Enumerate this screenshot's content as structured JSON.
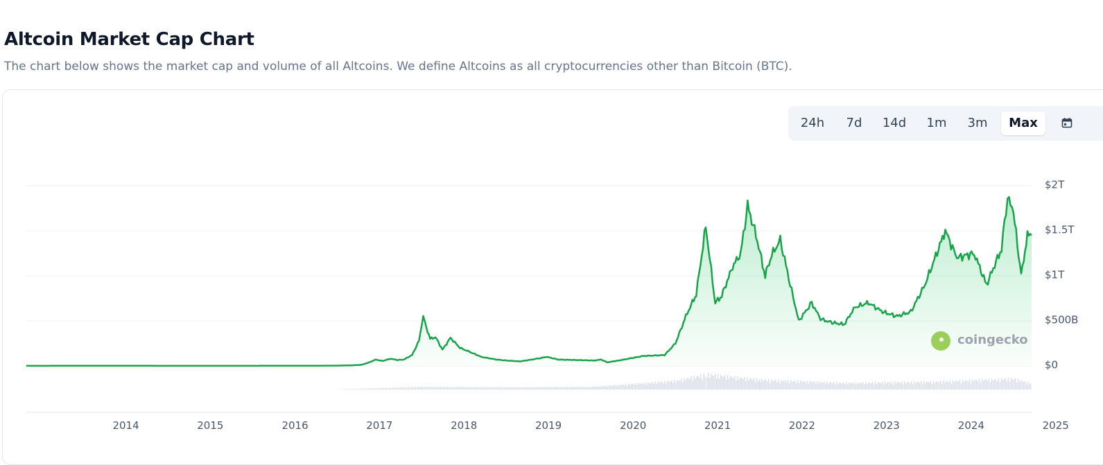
{
  "header": {
    "title": "Altcoin Market Cap Chart",
    "subtitle": "The chart below shows the market cap and volume of all Altcoins. We define Altcoins as all cryptocurrencies other than Bitcoin (BTC)."
  },
  "range_selector": {
    "options": [
      "24h",
      "7d",
      "14d",
      "1m",
      "3m",
      "Max"
    ],
    "selected": "Max",
    "calendar_icon": "calendar-icon"
  },
  "watermark": {
    "text": "coingecko",
    "icon": "coingecko-logo"
  },
  "colors": {
    "line": "#16a34a",
    "fill": "#22c55e",
    "volume": "#d8dde6",
    "grid": "#eef0f3"
  },
  "chart_data": {
    "type": "area",
    "title": "",
    "xlabel": "",
    "ylabel": "",
    "x_ticks": [
      "2014",
      "2015",
      "2016",
      "2017",
      "2018",
      "2019",
      "2020",
      "2021",
      "2022",
      "2023",
      "2024",
      "2025"
    ],
    "y_ticks": [
      "$0",
      "$500B",
      "$1T",
      "$1.5T",
      "$2T"
    ],
    "y_tick_values": [
      0,
      500,
      1000,
      1500,
      2000
    ],
    "y_unit": "billions USD",
    "xlim": [
      "2013-04-28",
      "2025-03-20"
    ],
    "ylim": [
      0,
      2000
    ],
    "grid": true,
    "legend": "none",
    "series": [
      {
        "values": [
          [
            "2013-04-28",
            0.5
          ],
          [
            "2014-01-01",
            2
          ],
          [
            "2015-01-01",
            1
          ],
          [
            "2016-01-01",
            1
          ],
          [
            "2016-12-31",
            3
          ],
          [
            "2017-03-01",
            6
          ],
          [
            "2017-04-15",
            12
          ],
          [
            "2017-05-20",
            40
          ],
          [
            "2017-06-15",
            70
          ],
          [
            "2017-07-15",
            55
          ],
          [
            "2017-08-20",
            80
          ],
          [
            "2017-09-15",
            65
          ],
          [
            "2017-10-15",
            70
          ],
          [
            "2017-11-20",
            120
          ],
          [
            "2017-12-20",
            280
          ],
          [
            "2018-01-07",
            560
          ],
          [
            "2018-01-15",
            470
          ],
          [
            "2018-02-06",
            300
          ],
          [
            "2018-03-01",
            320
          ],
          [
            "2018-03-31",
            180
          ],
          [
            "2018-05-05",
            310
          ],
          [
            "2018-06-15",
            200
          ],
          [
            "2018-08-01",
            150
          ],
          [
            "2018-09-15",
            100
          ],
          [
            "2018-11-20",
            70
          ],
          [
            "2019-01-01",
            60
          ],
          [
            "2019-03-01",
            50
          ],
          [
            "2019-05-15",
            80
          ],
          [
            "2019-06-25",
            100
          ],
          [
            "2019-08-15",
            70
          ],
          [
            "2019-11-01",
            65
          ],
          [
            "2020-01-15",
            60
          ],
          [
            "2020-02-15",
            70
          ],
          [
            "2020-03-12",
            40
          ],
          [
            "2020-05-01",
            60
          ],
          [
            "2020-08-15",
            110
          ],
          [
            "2020-11-15",
            120
          ],
          [
            "2021-01-01",
            250
          ],
          [
            "2021-02-15",
            550
          ],
          [
            "2021-04-01",
            800
          ],
          [
            "2021-05-12",
            1550
          ],
          [
            "2021-06-22",
            700
          ],
          [
            "2021-07-20",
            780
          ],
          [
            "2021-09-05",
            1100
          ],
          [
            "2021-10-10",
            1250
          ],
          [
            "2021-11-09",
            1780
          ],
          [
            "2021-12-15",
            1450
          ],
          [
            "2022-01-24",
            1000
          ],
          [
            "2022-02-15",
            1200
          ],
          [
            "2022-03-30",
            1400
          ],
          [
            "2022-05-12",
            900
          ],
          [
            "2022-06-18",
            500
          ],
          [
            "2022-08-13",
            700
          ],
          [
            "2022-09-20",
            520
          ],
          [
            "2022-11-09",
            480
          ],
          [
            "2022-12-31",
            460
          ],
          [
            "2023-02-15",
            650
          ],
          [
            "2023-04-15",
            700
          ],
          [
            "2023-06-15",
            600
          ],
          [
            "2023-08-15",
            550
          ],
          [
            "2023-10-15",
            600
          ],
          [
            "2023-12-15",
            900
          ],
          [
            "2024-03-12",
            1500
          ],
          [
            "2024-05-01",
            1200
          ],
          [
            "2024-07-15",
            1250
          ],
          [
            "2024-09-06",
            900
          ],
          [
            "2024-11-10",
            1300
          ],
          [
            "2024-12-06",
            1870
          ],
          [
            "2025-01-01",
            1700
          ],
          [
            "2025-02-03",
            1000
          ],
          [
            "2025-03-02",
            1450
          ],
          [
            "2025-03-20",
            1450
          ]
        ]
      }
    ],
    "volume": {
      "values": [
        [
          "2017-01-01",
          1
        ],
        [
          "2018-01-01",
          12
        ],
        [
          "2019-01-01",
          10
        ],
        [
          "2020-01-01",
          12
        ],
        [
          "2021-01-01",
          40
        ],
        [
          "2021-05-15",
          70
        ],
        [
          "2022-01-01",
          45
        ],
        [
          "2023-01-01",
          30
        ],
        [
          "2024-01-01",
          35
        ],
        [
          "2025-01-01",
          50
        ],
        [
          "2025-03-20",
          25
        ]
      ]
    }
  }
}
